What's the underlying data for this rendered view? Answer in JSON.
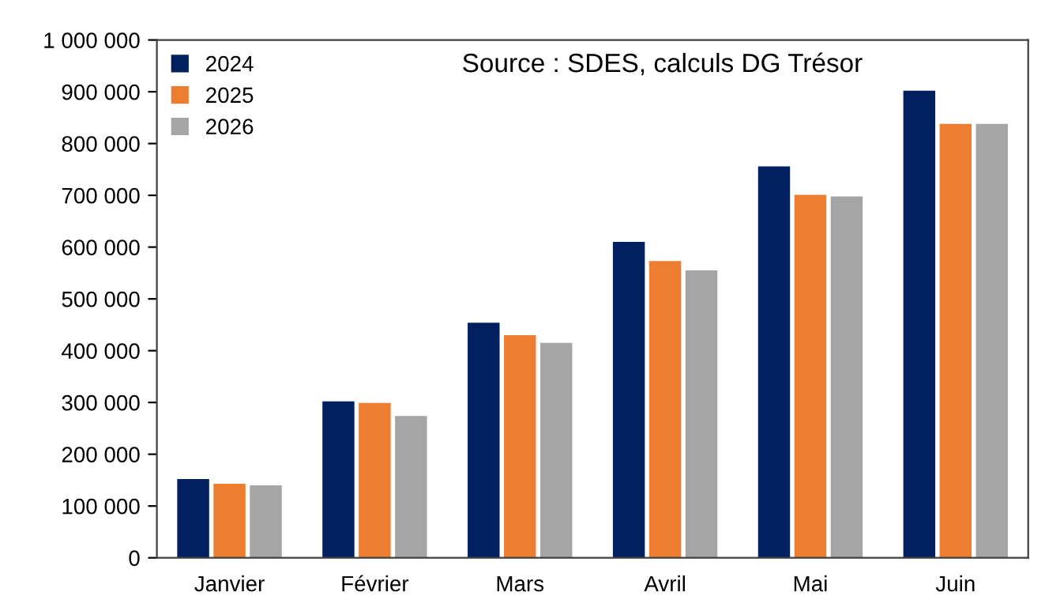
{
  "chart_data": {
    "type": "bar",
    "categories": [
      "Janvier",
      "Février",
      "Mars",
      "Avril",
      "Mai",
      "Juin"
    ],
    "series": [
      {
        "name": "2024",
        "color": "#002060",
        "values": [
          152000,
          302000,
          454000,
          610000,
          756000,
          902000
        ]
      },
      {
        "name": "2025",
        "color": "#ed7d31",
        "values": [
          143000,
          299000,
          430000,
          573000,
          701000,
          838000
        ]
      },
      {
        "name": "2026",
        "color": "#a5a5a5",
        "values": [
          140000,
          274000,
          415000,
          555000,
          698000,
          838000
        ]
      }
    ],
    "ylim": [
      0,
      1000000
    ],
    "yticks": [
      {
        "value": 0,
        "label": "0"
      },
      {
        "value": 100000,
        "label": "100 000"
      },
      {
        "value": 200000,
        "label": "200 000"
      },
      {
        "value": 300000,
        "label": "300 000"
      },
      {
        "value": 400000,
        "label": "400 000"
      },
      {
        "value": 500000,
        "label": "500 000"
      },
      {
        "value": 600000,
        "label": "600 000"
      },
      {
        "value": 700000,
        "label": "700 000"
      },
      {
        "value": 800000,
        "label": "800 000"
      },
      {
        "value": 900000,
        "label": "900 000"
      },
      {
        "value": 1000000,
        "label": "1 000 000"
      }
    ],
    "annotations": [
      "Source : SDES, calculs DG Trésor"
    ],
    "legend": "top left",
    "grid": false
  }
}
